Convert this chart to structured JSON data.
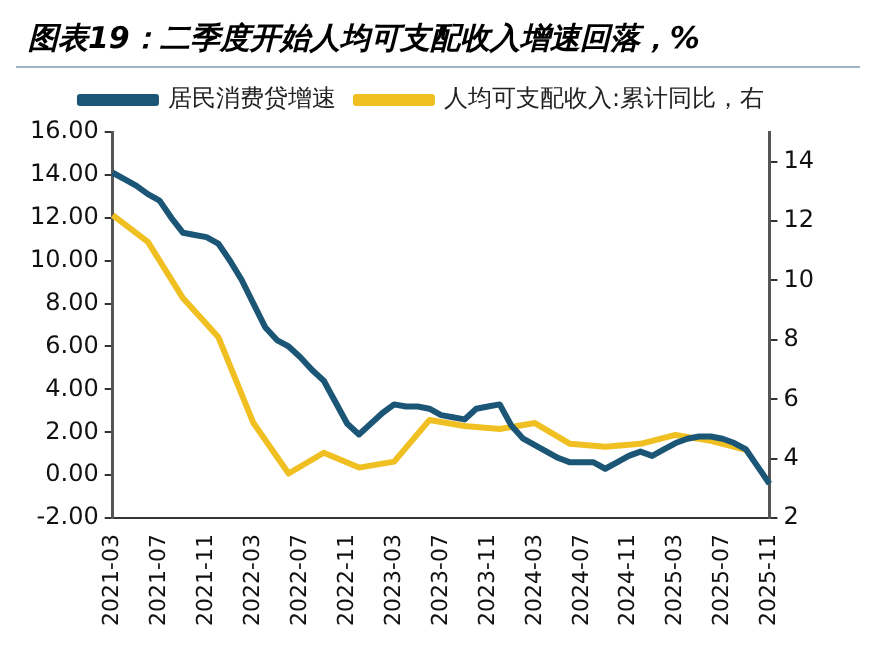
{
  "chart_data": {
    "type": "line",
    "title": "图表19：二季度开始人均可支配收入增速回落，%",
    "categories": [
      "2021-03",
      null,
      null,
      null,
      "2021-07",
      null,
      null,
      null,
      "2021-11",
      null,
      null,
      null,
      "2022-03",
      null,
      null,
      null,
      "2022-07",
      null,
      null,
      null,
      "2022-11",
      null,
      null,
      null,
      "2023-03",
      null,
      null,
      null,
      "2023-07",
      null,
      null,
      null,
      "2023-11",
      null,
      null,
      null,
      "2024-03",
      null,
      null,
      null,
      "2024-07",
      null,
      null,
      null,
      "2024-11",
      null,
      null,
      null,
      "2025-03",
      null,
      null,
      null,
      "2025-07",
      null,
      null,
      null,
      "2025-11"
    ],
    "series": [
      {
        "name": "居民消费贷增速",
        "color": "#1b5676",
        "values": [
          14.1,
          13.8,
          13.5,
          13.1,
          12.8,
          12.0,
          11.3,
          11.2,
          11.1,
          10.8,
          10.0,
          9.1,
          8.0,
          6.9,
          6.3,
          6.0,
          5.5,
          4.9,
          4.4,
          3.4,
          2.4,
          1.9,
          2.4,
          2.9,
          3.3,
          3.2,
          3.2,
          3.1,
          2.8,
          2.7,
          2.6,
          3.1,
          3.2,
          3.3,
          2.3,
          1.7,
          1.4,
          1.1,
          0.8,
          0.6,
          0.6,
          0.6,
          0.3,
          0.6,
          0.9,
          1.1,
          0.9,
          1.2,
          1.5,
          1.7,
          1.8,
          1.8,
          1.7,
          1.5,
          1.2,
          0.4,
          -0.4
        ]
      },
      {
        "name": "人均可支配收入:累计同比，右",
        "color": "#f0c023",
        "axis": "y2",
        "values": [
          12.2,
          null,
          null,
          11.3,
          null,
          null,
          9.4,
          null,
          null,
          8.1,
          null,
          null,
          5.2,
          null,
          null,
          3.5,
          null,
          null,
          4.2,
          null,
          null,
          3.7,
          null,
          null,
          3.9,
          null,
          null,
          5.3,
          null,
          null,
          5.1,
          null,
          null,
          5.0,
          null,
          null,
          5.2,
          null,
          null,
          4.5,
          null,
          null,
          4.4,
          null,
          null,
          4.5,
          null,
          null,
          4.8,
          null,
          null,
          4.6,
          null,
          null,
          4.3,
          null,
          null
        ]
      }
    ],
    "ylim": [
      -2,
      16
    ],
    "yticks": [
      {
        "value": -2,
        "label": "-2.00"
      },
      {
        "value": 0,
        "label": "0.00"
      },
      {
        "value": 2,
        "label": "2.00"
      },
      {
        "value": 4,
        "label": "4.00"
      },
      {
        "value": 6,
        "label": "6.00"
      },
      {
        "value": 8,
        "label": "8.00"
      },
      {
        "value": 10,
        "label": "10.00"
      },
      {
        "value": 12,
        "label": "12.00"
      },
      {
        "value": 14,
        "label": "14.00"
      },
      {
        "value": 16,
        "label": "16.00"
      }
    ],
    "y2lim": [
      2,
      15
    ],
    "y2ticks": [
      2,
      4,
      6,
      8,
      10,
      12,
      14
    ],
    "grid": false,
    "legend": "top",
    "marker": "none",
    "line_style": "solid"
  }
}
